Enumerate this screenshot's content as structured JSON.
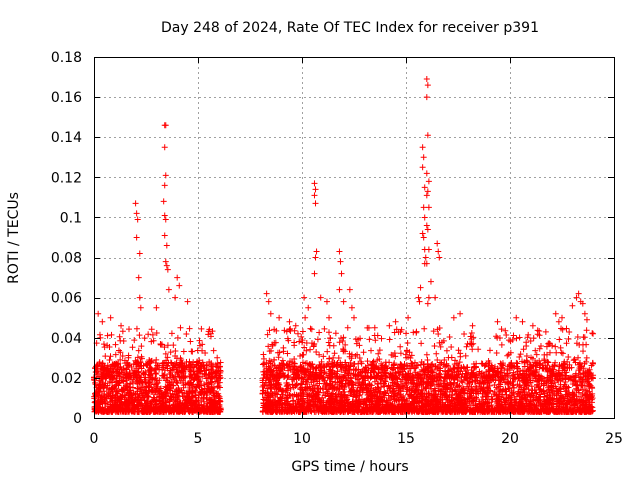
{
  "chart_data": {
    "type": "scatter",
    "title": "Day 248 of 2024, Rate Of TEC Index for receiver p391",
    "xlabel": "GPS time / hours",
    "ylabel": "ROTI / TECUs",
    "xlim": [
      0,
      25
    ],
    "ylim": [
      0,
      0.18
    ],
    "x_ticks": [
      0,
      5,
      10,
      15,
      20,
      25
    ],
    "x_tick_labels": [
      "0",
      "5",
      "10",
      "15",
      "20",
      "25"
    ],
    "y_ticks": [
      0,
      0.02,
      0.04,
      0.06,
      0.08,
      0.1,
      0.12,
      0.14,
      0.16,
      0.18
    ],
    "y_tick_labels": [
      "0",
      "0.02",
      "0.04",
      "0.06",
      "0.08",
      "0.1",
      "0.12",
      "0.14",
      "0.16",
      "0.18"
    ],
    "grid": true,
    "marker": "+",
    "color": "#ff0000",
    "data_gap_hours": [
      6.1,
      8.1
    ],
    "series": [
      {
        "name": "ROTI",
        "bands": [
          {
            "x_range": [
              0.0,
              6.1
            ],
            "y_range": [
              0.003,
              0.028
            ],
            "count": 1400
          },
          {
            "x_range": [
              8.1,
              24.0
            ],
            "y_range": [
              0.003,
              0.028
            ],
            "count": 3400
          },
          {
            "x_range": [
              0.0,
              6.1
            ],
            "y_range": [
              0.02,
              0.045
            ],
            "count": 230
          },
          {
            "x_range": [
              8.1,
              24.0
            ],
            "y_range": [
              0.02,
              0.045
            ],
            "count": 560
          }
        ],
        "points": [
          {
            "x": 2.0,
            "y": 0.107
          },
          {
            "x": 2.05,
            "y": 0.102
          },
          {
            "x": 2.1,
            "y": 0.099
          },
          {
            "x": 2.05,
            "y": 0.09
          },
          {
            "x": 2.2,
            "y": 0.082
          },
          {
            "x": 2.15,
            "y": 0.07
          },
          {
            "x": 2.2,
            "y": 0.06
          },
          {
            "x": 2.25,
            "y": 0.055
          },
          {
            "x": 3.4,
            "y": 0.146
          },
          {
            "x": 3.45,
            "y": 0.146
          },
          {
            "x": 3.4,
            "y": 0.135
          },
          {
            "x": 3.45,
            "y": 0.121
          },
          {
            "x": 3.4,
            "y": 0.116
          },
          {
            "x": 3.35,
            "y": 0.108
          },
          {
            "x": 3.4,
            "y": 0.101
          },
          {
            "x": 3.45,
            "y": 0.099
          },
          {
            "x": 3.4,
            "y": 0.091
          },
          {
            "x": 3.5,
            "y": 0.086
          },
          {
            "x": 3.45,
            "y": 0.078
          },
          {
            "x": 3.5,
            "y": 0.076
          },
          {
            "x": 3.55,
            "y": 0.074
          },
          {
            "x": 3.6,
            "y": 0.064
          },
          {
            "x": 4.0,
            "y": 0.07
          },
          {
            "x": 4.1,
            "y": 0.066
          },
          {
            "x": 3.9,
            "y": 0.06
          },
          {
            "x": 4.5,
            "y": 0.058
          },
          {
            "x": 3.0,
            "y": 0.055
          },
          {
            "x": 0.2,
            "y": 0.052
          },
          {
            "x": 0.4,
            "y": 0.048
          },
          {
            "x": 0.8,
            "y": 0.05
          },
          {
            "x": 1.3,
            "y": 0.046
          },
          {
            "x": 8.3,
            "y": 0.062
          },
          {
            "x": 8.4,
            "y": 0.058
          },
          {
            "x": 8.5,
            "y": 0.052
          },
          {
            "x": 8.9,
            "y": 0.05
          },
          {
            "x": 9.4,
            "y": 0.048
          },
          {
            "x": 9.7,
            "y": 0.046
          },
          {
            "x": 10.1,
            "y": 0.06
          },
          {
            "x": 10.3,
            "y": 0.055
          },
          {
            "x": 10.15,
            "y": 0.05
          },
          {
            "x": 10.6,
            "y": 0.117
          },
          {
            "x": 10.65,
            "y": 0.114
          },
          {
            "x": 10.6,
            "y": 0.111
          },
          {
            "x": 10.65,
            "y": 0.107
          },
          {
            "x": 10.7,
            "y": 0.083
          },
          {
            "x": 10.65,
            "y": 0.08
          },
          {
            "x": 10.6,
            "y": 0.072
          },
          {
            "x": 10.9,
            "y": 0.06
          },
          {
            "x": 11.2,
            "y": 0.058
          },
          {
            "x": 11.3,
            "y": 0.05
          },
          {
            "x": 11.8,
            "y": 0.083
          },
          {
            "x": 11.85,
            "y": 0.078
          },
          {
            "x": 11.9,
            "y": 0.072
          },
          {
            "x": 11.8,
            "y": 0.064
          },
          {
            "x": 12.0,
            "y": 0.058
          },
          {
            "x": 12.3,
            "y": 0.064
          },
          {
            "x": 12.4,
            "y": 0.055
          },
          {
            "x": 12.5,
            "y": 0.05
          },
          {
            "x": 12.2,
            "y": 0.045
          },
          {
            "x": 13.5,
            "y": 0.045
          },
          {
            "x": 14.2,
            "y": 0.046
          },
          {
            "x": 14.5,
            "y": 0.048
          },
          {
            "x": 15.1,
            "y": 0.05
          },
          {
            "x": 15.6,
            "y": 0.06
          },
          {
            "x": 15.7,
            "y": 0.065
          },
          {
            "x": 15.65,
            "y": 0.058
          },
          {
            "x": 15.8,
            "y": 0.135
          },
          {
            "x": 15.85,
            "y": 0.13
          },
          {
            "x": 15.8,
            "y": 0.125
          },
          {
            "x": 15.9,
            "y": 0.115
          },
          {
            "x": 15.85,
            "y": 0.105
          },
          {
            "x": 15.9,
            "y": 0.1
          },
          {
            "x": 15.8,
            "y": 0.092
          },
          {
            "x": 15.85,
            "y": 0.09
          },
          {
            "x": 15.9,
            "y": 0.084
          },
          {
            "x": 15.95,
            "y": 0.08
          },
          {
            "x": 15.9,
            "y": 0.077
          },
          {
            "x": 16.0,
            "y": 0.169
          },
          {
            "x": 16.05,
            "y": 0.166
          },
          {
            "x": 16.0,
            "y": 0.16
          },
          {
            "x": 16.05,
            "y": 0.141
          },
          {
            "x": 16.0,
            "y": 0.122
          },
          {
            "x": 16.1,
            "y": 0.118
          },
          {
            "x": 16.05,
            "y": 0.113
          },
          {
            "x": 16.0,
            "y": 0.111
          },
          {
            "x": 16.1,
            "y": 0.105
          },
          {
            "x": 16.0,
            "y": 0.096
          },
          {
            "x": 16.05,
            "y": 0.094
          },
          {
            "x": 16.1,
            "y": 0.084
          },
          {
            "x": 16.0,
            "y": 0.077
          },
          {
            "x": 16.2,
            "y": 0.068
          },
          {
            "x": 16.1,
            "y": 0.06
          },
          {
            "x": 16.05,
            "y": 0.057
          },
          {
            "x": 16.5,
            "y": 0.087
          },
          {
            "x": 16.55,
            "y": 0.083
          },
          {
            "x": 16.6,
            "y": 0.08
          },
          {
            "x": 16.4,
            "y": 0.06
          },
          {
            "x": 17.3,
            "y": 0.05
          },
          {
            "x": 17.6,
            "y": 0.052
          },
          {
            "x": 18.2,
            "y": 0.046
          },
          {
            "x": 19.4,
            "y": 0.048
          },
          {
            "x": 20.3,
            "y": 0.05
          },
          {
            "x": 20.6,
            "y": 0.048
          },
          {
            "x": 21.1,
            "y": 0.046
          },
          {
            "x": 22.2,
            "y": 0.052
          },
          {
            "x": 22.35,
            "y": 0.048
          },
          {
            "x": 22.5,
            "y": 0.05
          },
          {
            "x": 23.0,
            "y": 0.056
          },
          {
            "x": 23.2,
            "y": 0.06
          },
          {
            "x": 23.3,
            "y": 0.062
          },
          {
            "x": 23.4,
            "y": 0.058
          },
          {
            "x": 23.5,
            "y": 0.057
          },
          {
            "x": 23.6,
            "y": 0.052
          },
          {
            "x": 23.7,
            "y": 0.049
          }
        ]
      }
    ]
  }
}
